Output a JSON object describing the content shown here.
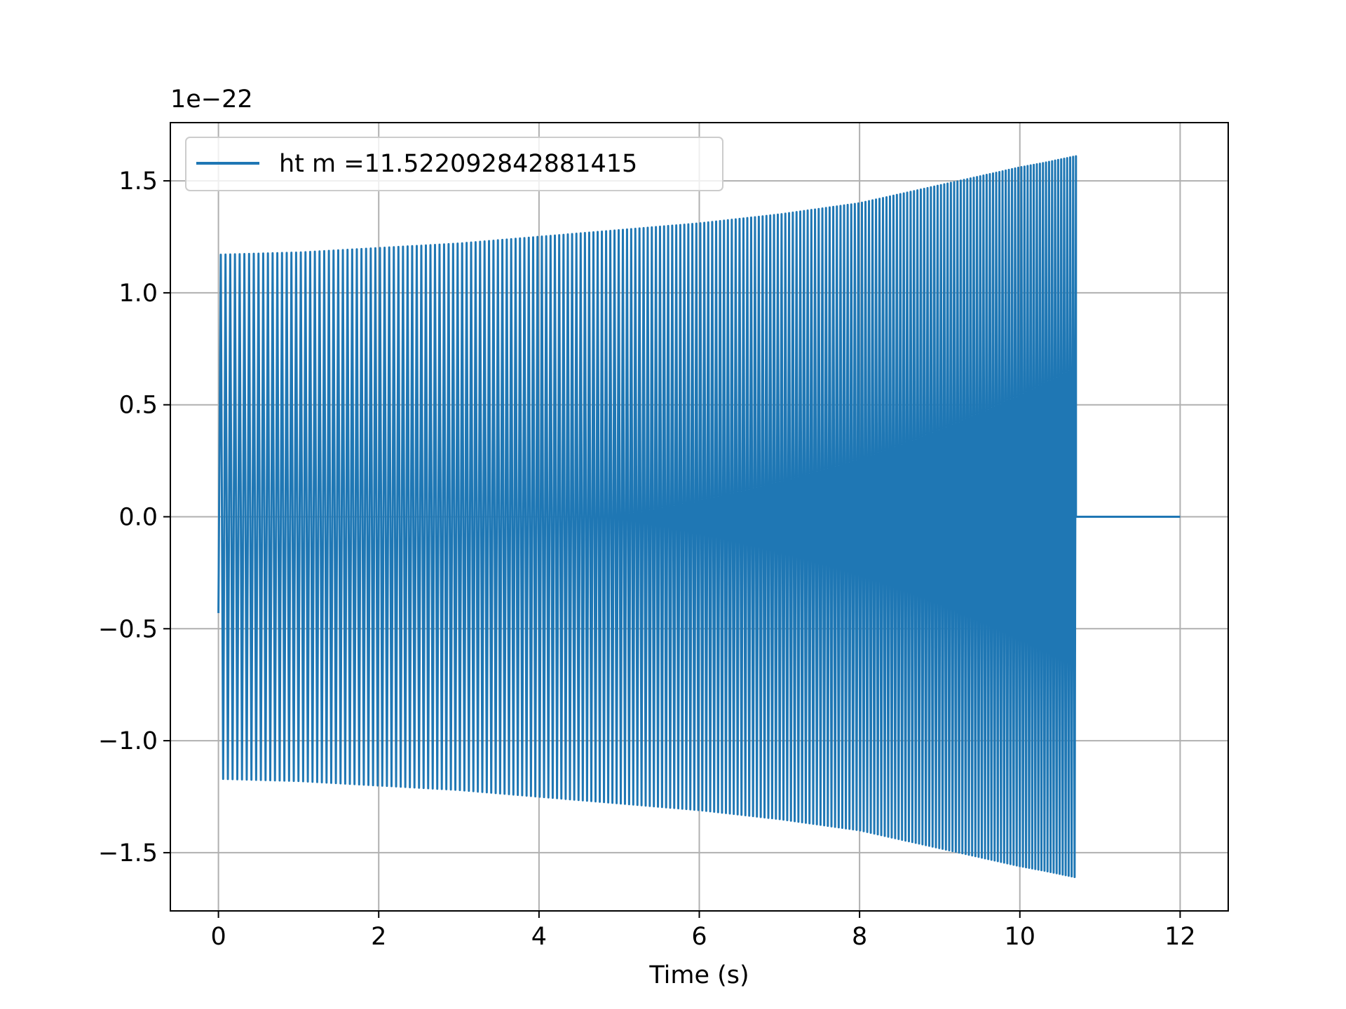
{
  "chart_data": {
    "type": "line",
    "title": "",
    "xlabel": "Time (s)",
    "ylabel": "",
    "y_offset_label": "1e−22",
    "xlim": [
      -0.6,
      12.6
    ],
    "ylim": [
      -1.76,
      1.76
    ],
    "x_ticks": [
      0,
      2,
      4,
      6,
      8,
      10,
      12
    ],
    "x_tick_labels": [
      "0",
      "2",
      "4",
      "6",
      "8",
      "10",
      "12"
    ],
    "y_ticks": [
      -1.5,
      -1.0,
      -0.5,
      0.0,
      0.5,
      1.0,
      1.5
    ],
    "y_tick_labels": [
      "−1.5",
      "−1.0",
      "−0.5",
      "0.0",
      "0.5",
      "1.0",
      "1.5"
    ],
    "grid": true,
    "legend_position": "top-left",
    "series": [
      {
        "name": "ht m =11.522092842881415",
        "color": "#1f77b4",
        "description_of_shape": "chirp",
        "t_start": 0.0,
        "t_merge": 10.7,
        "t_end": 12.0,
        "initial_value": -0.43,
        "envelope_t": [
          0,
          1,
          2,
          3,
          4,
          5,
          6,
          7,
          8,
          9,
          9.5,
          10,
          10.3,
          10.7
        ],
        "envelope_amp": [
          1.17,
          1.18,
          1.2,
          1.22,
          1.25,
          1.28,
          1.31,
          1.35,
          1.4,
          1.48,
          1.52,
          1.56,
          1.58,
          1.61
        ],
        "post_merge_value": 0.0
      }
    ]
  }
}
